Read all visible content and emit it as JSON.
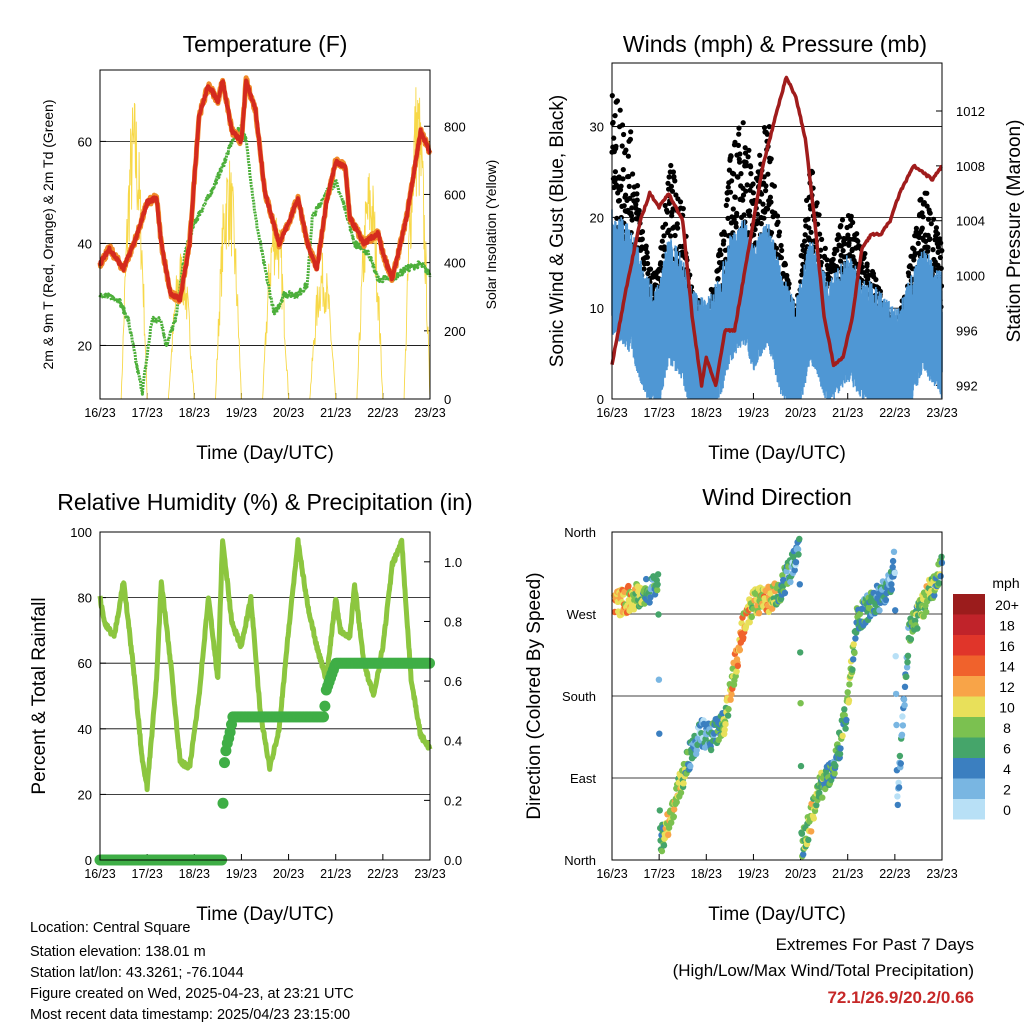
{
  "x_ticks": [
    "16/23",
    "17/23",
    "18/23",
    "19/23",
    "20/23",
    "21/23",
    "22/23",
    "23/23"
  ],
  "chart_data": [
    {
      "type": "line",
      "title": "Temperature (F)",
      "xlabel": "Time (Day/UTC)",
      "ylabel": "2m & 9m T (Red, Orange) & 2m Td (Green)",
      "y2label": "Solar Insolation (Yellow)",
      "ylim": [
        9.5,
        74
      ],
      "y2lim": [
        0,
        965
      ],
      "yticks": [
        20,
        40,
        60
      ],
      "y2ticks": [
        0,
        200,
        400,
        600,
        800
      ],
      "series": [
        {
          "name": "2m T",
          "color": "#d42a1e",
          "points": [
            [
              0,
              36
            ],
            [
              0.2,
              39
            ],
            [
              0.5,
              35
            ],
            [
              0.8,
              42
            ],
            [
              1.0,
              48
            ],
            [
              1.2,
              49
            ],
            [
              1.3,
              40
            ],
            [
              1.5,
              30
            ],
            [
              1.7,
              29
            ],
            [
              1.9,
              40
            ],
            [
              2.1,
              65
            ],
            [
              2.3,
              71
            ],
            [
              2.5,
              68
            ],
            [
              2.6,
              72
            ],
            [
              2.8,
              62
            ],
            [
              3.0,
              60
            ],
            [
              3.1,
              72
            ],
            [
              3.3,
              66
            ],
            [
              3.5,
              50
            ],
            [
              3.8,
              40
            ],
            [
              4.0,
              44
            ],
            [
              4.2,
              49
            ],
            [
              4.4,
              40
            ],
            [
              4.6,
              35
            ],
            [
              4.8,
              48
            ],
            [
              5.0,
              56
            ],
            [
              5.2,
              55
            ],
            [
              5.3,
              45
            ],
            [
              5.6,
              40
            ],
            [
              5.9,
              42
            ],
            [
              6.0,
              38
            ],
            [
              6.2,
              33
            ],
            [
              6.5,
              45
            ],
            [
              6.8,
              62
            ],
            [
              7.0,
              58
            ]
          ]
        },
        {
          "name": "2m Td",
          "color": "#4caf3a",
          "points": [
            [
              0,
              30
            ],
            [
              0.4,
              29
            ],
            [
              0.6,
              25
            ],
            [
              0.8,
              15
            ],
            [
              0.9,
              11
            ],
            [
              1.1,
              25
            ],
            [
              1.3,
              25
            ],
            [
              1.4,
              20
            ],
            [
              1.6,
              25
            ],
            [
              1.8,
              38
            ],
            [
              2.0,
              44
            ],
            [
              2.3,
              49
            ],
            [
              2.6,
              55
            ],
            [
              2.8,
              60
            ],
            [
              3.0,
              63
            ],
            [
              3.1,
              60
            ],
            [
              3.3,
              45
            ],
            [
              3.5,
              35
            ],
            [
              3.7,
              26
            ],
            [
              3.9,
              30
            ],
            [
              4.2,
              30
            ],
            [
              4.4,
              32
            ],
            [
              4.5,
              45
            ],
            [
              4.8,
              50
            ],
            [
              5.0,
              52
            ],
            [
              5.2,
              47
            ],
            [
              5.4,
              40
            ],
            [
              5.7,
              38
            ],
            [
              5.9,
              33
            ],
            [
              6.2,
              33
            ],
            [
              6.5,
              35
            ],
            [
              6.8,
              36
            ],
            [
              7.0,
              34
            ]
          ]
        },
        {
          "name": "Solar Insolation",
          "color": "#f7d848",
          "daily_peaks": [
            900,
            450,
            730,
            600,
            430,
            700,
            960,
            850
          ]
        }
      ]
    },
    {
      "type": "scatter",
      "title": "Winds (mph) & Pressure (mb)",
      "xlabel": "Time (Day/UTC)",
      "ylabel": "Sonic Wind & Gust (Blue, Black)",
      "y2label": "Station Pressure (Maroon)",
      "ylim": [
        0,
        37
      ],
      "y2lim": [
        991,
        1015.5
      ],
      "yticks": [
        0,
        10,
        20,
        30
      ],
      "y2ticks": [
        992,
        996,
        1000,
        1004,
        1008,
        1012
      ],
      "series": [
        {
          "name": "Sonic Wind",
          "color": "#4f97d4",
          "points": [
            [
              0,
              13
            ],
            [
              0.4,
              11
            ],
            [
              0.8,
              5
            ],
            [
              1.0,
              5
            ],
            [
              1.2,
              10
            ],
            [
              1.5,
              8
            ],
            [
              1.7,
              4
            ],
            [
              2.0,
              3
            ],
            [
              2.3,
              6
            ],
            [
              2.5,
              10
            ],
            [
              2.8,
              12
            ],
            [
              3.0,
              9
            ],
            [
              3.3,
              12
            ],
            [
              3.6,
              6
            ],
            [
              3.9,
              3
            ],
            [
              4.2,
              10
            ],
            [
              4.6,
              5
            ],
            [
              5.0,
              8
            ],
            [
              5.3,
              6
            ],
            [
              5.7,
              4
            ],
            [
              6.0,
              2
            ],
            [
              6.3,
              5
            ],
            [
              6.6,
              9
            ],
            [
              7.0,
              6
            ]
          ]
        },
        {
          "name": "Gust",
          "color": "#000000"
        },
        {
          "name": "Station Pressure",
          "color": "#a01c1c",
          "points": [
            [
              0,
              993.5
            ],
            [
              0.3,
              999
            ],
            [
              0.6,
              1004
            ],
            [
              0.8,
              1006
            ],
            [
              1.0,
              1005
            ],
            [
              1.2,
              1006
            ],
            [
              1.5,
              1004
            ],
            [
              1.7,
              997
            ],
            [
              1.9,
              992
            ],
            [
              2.0,
              994
            ],
            [
              2.2,
              992
            ],
            [
              2.4,
              996
            ],
            [
              2.6,
              996
            ],
            [
              2.8,
              1000
            ],
            [
              3.0,
              1004
            ],
            [
              3.2,
              1008
            ],
            [
              3.5,
              1012
            ],
            [
              3.7,
              1014.5
            ],
            [
              3.9,
              1013
            ],
            [
              4.1,
              1010
            ],
            [
              4.3,
              1004
            ],
            [
              4.5,
              997
            ],
            [
              4.7,
              993.5
            ],
            [
              4.9,
              994
            ],
            [
              5.1,
              997
            ],
            [
              5.3,
              1002
            ],
            [
              5.5,
              1003
            ],
            [
              5.7,
              1003
            ],
            [
              5.9,
              1004
            ],
            [
              6.1,
              1006
            ],
            [
              6.4,
              1008
            ],
            [
              6.6,
              1007.5
            ],
            [
              6.8,
              1007
            ],
            [
              7.0,
              1008
            ]
          ]
        }
      ]
    },
    {
      "type": "line",
      "title": "Relative Humidity (%) & Precipitation (in)",
      "xlabel": "Time (Day/UTC)",
      "ylabel": "Percent & Total Rainfall",
      "ylim": [
        0,
        100
      ],
      "y2lim": [
        0,
        1.1
      ],
      "yticks": [
        0,
        20,
        40,
        60,
        80,
        100
      ],
      "y2ticks": [
        "0.0",
        "0.2",
        "0.4",
        "0.6",
        "0.8",
        "1.0"
      ],
      "series": [
        {
          "name": "Relative Humidity",
          "color": "#8cc63f",
          "points": [
            [
              0,
              80
            ],
            [
              0.1,
              72
            ],
            [
              0.3,
              68
            ],
            [
              0.5,
              85
            ],
            [
              0.7,
              60
            ],
            [
              0.9,
              30
            ],
            [
              1.0,
              22
            ],
            [
              1.2,
              55
            ],
            [
              1.3,
              85
            ],
            [
              1.5,
              60
            ],
            [
              1.7,
              30
            ],
            [
              1.9,
              28
            ],
            [
              2.1,
              50
            ],
            [
              2.3,
              80
            ],
            [
              2.5,
              55
            ],
            [
              2.6,
              98
            ],
            [
              2.8,
              72
            ],
            [
              3.0,
              65
            ],
            [
              3.2,
              80
            ],
            [
              3.4,
              45
            ],
            [
              3.6,
              28
            ],
            [
              3.8,
              40
            ],
            [
              4.0,
              70
            ],
            [
              4.2,
              97
            ],
            [
              4.4,
              78
            ],
            [
              4.6,
              65
            ],
            [
              4.8,
              55
            ],
            [
              5.0,
              80
            ],
            [
              5.1,
              70
            ],
            [
              5.3,
              68
            ],
            [
              5.4,
              84
            ],
            [
              5.6,
              60
            ],
            [
              5.8,
              50
            ],
            [
              6.0,
              65
            ],
            [
              6.2,
              90
            ],
            [
              6.4,
              97
            ],
            [
              6.6,
              55
            ],
            [
              6.8,
              38
            ],
            [
              7.0,
              34
            ]
          ]
        },
        {
          "name": "Total Rainfall",
          "color": "#3fae46",
          "points": [
            [
              0,
              0
            ],
            [
              2.58,
              0
            ],
            [
              2.6,
              0.08
            ],
            [
              2.62,
              0.3
            ],
            [
              2.68,
              0.38
            ],
            [
              2.75,
              0.42
            ],
            [
              2.82,
              0.48
            ],
            [
              4.75,
              0.48
            ],
            [
              4.8,
              0.57
            ],
            [
              5.0,
              0.66
            ],
            [
              7.0,
              0.66
            ]
          ]
        }
      ]
    },
    {
      "type": "scatter",
      "title": "Wind Direction",
      "xlabel": "Time (Day/UTC)",
      "ylabel": "Direction (Colored By Speed)",
      "yticks": [
        "North",
        "East",
        "South",
        "West",
        "North"
      ],
      "ylim": [
        0,
        360
      ],
      "direction_track": [
        [
          0,
          280
        ],
        [
          0.5,
          290
        ],
        [
          0.98,
          300
        ],
        [
          1.02,
          20
        ],
        [
          1.3,
          55
        ],
        [
          1.6,
          110
        ],
        [
          1.9,
          140
        ],
        [
          2.1,
          135
        ],
        [
          2.4,
          150
        ],
        [
          2.6,
          210
        ],
        [
          2.8,
          260
        ],
        [
          3.0,
          282
        ],
        [
          3.5,
          290
        ],
        [
          3.8,
          320
        ],
        [
          3.98,
          340
        ],
        [
          4.02,
          15
        ],
        [
          4.2,
          40
        ],
        [
          4.4,
          80
        ],
        [
          4.6,
          90
        ],
        [
          4.8,
          120
        ],
        [
          5.0,
          170
        ],
        [
          5.2,
          265
        ],
        [
          5.5,
          280
        ],
        [
          5.9,
          300
        ],
        [
          6.0,
          330
        ],
        [
          6.05,
          60
        ],
        [
          6.3,
          250
        ],
        [
          6.7,
          290
        ],
        [
          7.0,
          320
        ]
      ],
      "legend": {
        "title": "mph",
        "labels": [
          "20+",
          "18",
          "16",
          "14",
          "12",
          "10",
          "8",
          "6",
          "4",
          "2",
          "0"
        ],
        "colors": [
          "#9b1c1c",
          "#c0232a",
          "#e0352a",
          "#f0622c",
          "#f8a448",
          "#e8e05a",
          "#7bc150",
          "#45a56a",
          "#3b7fc0",
          "#79b6e2",
          "#b8e0f6"
        ]
      }
    }
  ],
  "info": {
    "location": "Location: Central Square",
    "elevation": "Station elevation: 138.01 m",
    "latlon": "Station lat/lon: 43.3261; -76.1044",
    "created": "Figure created on Wed, 2025-04-23, at 23:21 UTC",
    "recent": "Most recent data timestamp: 2025/04/23 23:15:00"
  },
  "extremes": {
    "title": "Extremes For Past 7 Days",
    "subtitle": "(High/Low/Max Wind/Total Precipitation)",
    "values": "72.1/26.9/20.2/0.66",
    "values_color": "#c62828"
  }
}
